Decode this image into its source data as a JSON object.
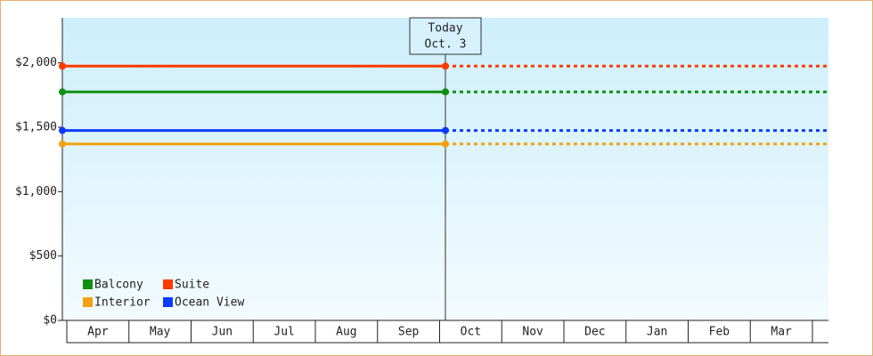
{
  "chart_data": {
    "type": "line",
    "today_label": [
      "Today",
      "Oct. 3"
    ],
    "categories": [
      "Apr",
      "May",
      "Jun",
      "Jul",
      "Aug",
      "Sep",
      "Oct",
      "Nov",
      "Dec",
      "Jan",
      "Feb",
      "Mar"
    ],
    "series": [
      {
        "name": "Balcony",
        "color": "#109010",
        "value": 1775
      },
      {
        "name": "Suite",
        "color": "#ff3a00",
        "value": 1975
      },
      {
        "name": "Interior",
        "color": "#f5a10f",
        "value": 1370
      },
      {
        "name": "Ocean View",
        "color": "#0a3cff",
        "value": 1475
      }
    ],
    "ylim": [
      0,
      2350
    ],
    "yticks": [
      {
        "value": 0,
        "label": "$0"
      },
      {
        "value": 500,
        "label": "$500"
      },
      {
        "value": 1000,
        "label": "$1,000"
      },
      {
        "value": 1500,
        "label": "$1,500"
      },
      {
        "value": 2000,
        "label": "$2,000"
      }
    ],
    "legend": "lower left"
  }
}
